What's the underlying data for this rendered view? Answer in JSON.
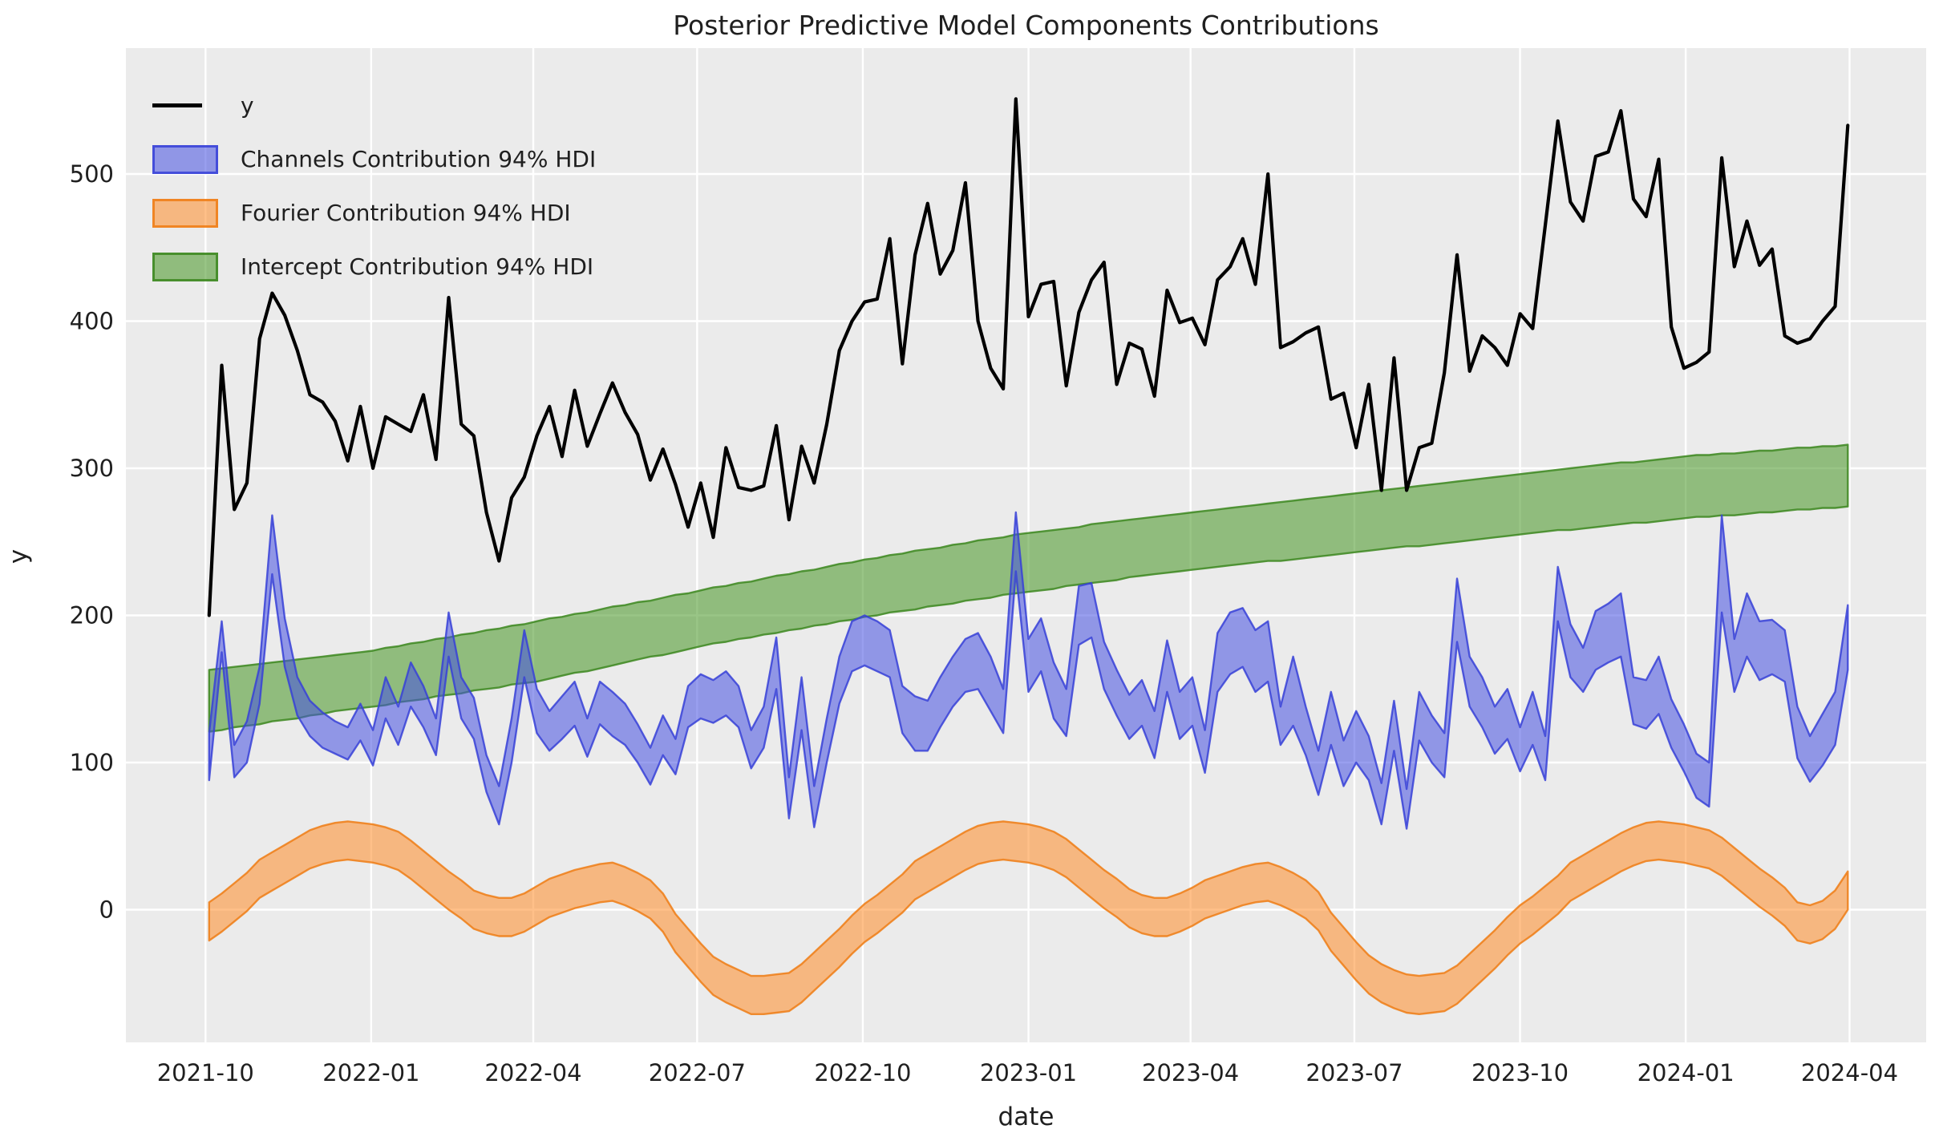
{
  "figure": {
    "title": "Posterior Predictive Model Components Contributions",
    "xlabel": "date",
    "ylabel": "y",
    "background_color": "#ffffff",
    "plot_background_color": "#ebebeb",
    "grid_color": "#ffffff",
    "text_color": "#1f1f1f",
    "line_color": "#000000"
  },
  "legend": {
    "items": [
      {
        "label": "y",
        "type": "line",
        "fill": "#000000",
        "edge": "#000000"
      },
      {
        "label": "Channels Contribution 94% HDI",
        "type": "patch",
        "fill": "rgba(70,80,225,0.55)",
        "edge": "rgba(55,65,215,0.85)"
      },
      {
        "label": "Fourier Contribution 94% HDI",
        "type": "patch",
        "fill": "rgba(255,140,40,0.55)",
        "edge": "rgba(238,125,20,0.85)"
      },
      {
        "label": "Intercept Contribution 94% HDI",
        "type": "patch",
        "fill": "rgba(70,150,35,0.55)",
        "edge": "rgba(60,135,30,0.85)"
      }
    ]
  },
  "chart_data": {
    "type": "line",
    "title": "Posterior Predictive Model Components Contributions",
    "xlabel": "date",
    "ylabel": "y",
    "grid": true,
    "legend_position": "upper left",
    "ylim": [
      -90,
      585
    ],
    "y_ticks": [
      0,
      100,
      200,
      300,
      400,
      500
    ],
    "x_tick_labels": [
      "2021-10",
      "2022-01",
      "2022-04",
      "2022-07",
      "2022-10",
      "2023-01",
      "2023-04",
      "2023-07",
      "2023-10",
      "2024-01",
      "2024-04"
    ],
    "x_tick_dates": [
      "2021-10-01",
      "2022-01-01",
      "2022-04-01",
      "2022-07-01",
      "2022-10-01",
      "2023-01-01",
      "2023-04-01",
      "2023-07-01",
      "2023-10-01",
      "2024-01-01",
      "2024-04-01"
    ],
    "hdi_probability": "94%",
    "dates": [
      "2021-10-03",
      "2021-10-10",
      "2021-10-17",
      "2021-10-24",
      "2021-10-31",
      "2021-11-07",
      "2021-11-14",
      "2021-11-21",
      "2021-11-28",
      "2021-12-05",
      "2021-12-12",
      "2021-12-19",
      "2021-12-26",
      "2022-01-02",
      "2022-01-09",
      "2022-01-16",
      "2022-01-23",
      "2022-01-30",
      "2022-02-06",
      "2022-02-13",
      "2022-02-20",
      "2022-02-27",
      "2022-03-06",
      "2022-03-13",
      "2022-03-20",
      "2022-03-27",
      "2022-04-03",
      "2022-04-10",
      "2022-04-17",
      "2022-04-24",
      "2022-05-01",
      "2022-05-08",
      "2022-05-15",
      "2022-05-22",
      "2022-05-29",
      "2022-06-05",
      "2022-06-12",
      "2022-06-19",
      "2022-06-26",
      "2022-07-03",
      "2022-07-10",
      "2022-07-17",
      "2022-07-24",
      "2022-07-31",
      "2022-08-07",
      "2022-08-14",
      "2022-08-21",
      "2022-08-28",
      "2022-09-04",
      "2022-09-11",
      "2022-09-18",
      "2022-09-25",
      "2022-10-02",
      "2022-10-09",
      "2022-10-16",
      "2022-10-23",
      "2022-10-30",
      "2022-11-06",
      "2022-11-13",
      "2022-11-20",
      "2022-11-27",
      "2022-12-04",
      "2022-12-11",
      "2022-12-18",
      "2022-12-25",
      "2023-01-01",
      "2023-01-08",
      "2023-01-15",
      "2023-01-22",
      "2023-01-29",
      "2023-02-05",
      "2023-02-12",
      "2023-02-19",
      "2023-02-26",
      "2023-03-05",
      "2023-03-12",
      "2023-03-19",
      "2023-03-26",
      "2023-04-02",
      "2023-04-09",
      "2023-04-16",
      "2023-04-23",
      "2023-04-30",
      "2023-05-07",
      "2023-05-14",
      "2023-05-21",
      "2023-05-28",
      "2023-06-04",
      "2023-06-11",
      "2023-06-18",
      "2023-06-25",
      "2023-07-02",
      "2023-07-09",
      "2023-07-16",
      "2023-07-23",
      "2023-07-30",
      "2023-08-06",
      "2023-08-13",
      "2023-08-20",
      "2023-08-27",
      "2023-09-03",
      "2023-09-10",
      "2023-09-17",
      "2023-09-24",
      "2023-10-01",
      "2023-10-08",
      "2023-10-15",
      "2023-10-22",
      "2023-10-29",
      "2023-11-05",
      "2023-11-12",
      "2023-11-19",
      "2023-11-26",
      "2023-12-03",
      "2023-12-10",
      "2023-12-17",
      "2023-12-24",
      "2023-12-31",
      "2024-01-07",
      "2024-01-14",
      "2024-01-21",
      "2024-01-28",
      "2024-02-04",
      "2024-02-11",
      "2024-02-18",
      "2024-02-25",
      "2024-03-03",
      "2024-03-10",
      "2024-03-17",
      "2024-03-24",
      "2024-03-31"
    ],
    "series": {
      "y": [
        200,
        370,
        272,
        290,
        388,
        419,
        404,
        380,
        350,
        345,
        332,
        305,
        342,
        300,
        335,
        330,
        325,
        350,
        306,
        416,
        330,
        322,
        270,
        237,
        280,
        294,
        322,
        342,
        308,
        353,
        315,
        337,
        358,
        338,
        323,
        292,
        313,
        289,
        260,
        290,
        253,
        314,
        287,
        285,
        288,
        329,
        265,
        315,
        290,
        330,
        380,
        400,
        413,
        415,
        456,
        371,
        445,
        480,
        432,
        448,
        494,
        400,
        368,
        354,
        551,
        403,
        425,
        427,
        356,
        406,
        428,
        440,
        357,
        385,
        381,
        349,
        421,
        399,
        402,
        384,
        428,
        437,
        456,
        425,
        500,
        382,
        386,
        392,
        396,
        347,
        351,
        314,
        357,
        285,
        375,
        285,
        314,
        317,
        365,
        445,
        366,
        390,
        382,
        370,
        405,
        395,
        465,
        536,
        481,
        468,
        512,
        515,
        543,
        483,
        471,
        510,
        396,
        368,
        372,
        379,
        511,
        437,
        468,
        438,
        449,
        390,
        385,
        388,
        400,
        410,
        533
      ],
      "channels_hdi_lower": [
        88,
        175,
        90,
        100,
        140,
        228,
        165,
        132,
        118,
        110,
        106,
        102,
        115,
        98,
        130,
        112,
        138,
        124,
        105,
        172,
        130,
        116,
        80,
        58,
        100,
        158,
        120,
        108,
        116,
        125,
        104,
        126,
        118,
        112,
        100,
        85,
        105,
        92,
        124,
        130,
        127,
        132,
        124,
        96,
        110,
        150,
        62,
        122,
        56,
        100,
        140,
        162,
        166,
        162,
        158,
        120,
        108,
        108,
        124,
        138,
        148,
        150,
        135,
        120,
        230,
        148,
        162,
        130,
        118,
        180,
        185,
        150,
        132,
        116,
        125,
        103,
        148,
        116,
        125,
        93,
        148,
        160,
        165,
        148,
        155,
        112,
        125,
        105,
        78,
        112,
        84,
        100,
        88,
        58,
        108,
        55,
        115,
        100,
        90,
        182,
        138,
        124,
        106,
        116,
        94,
        112,
        88,
        196,
        158,
        148,
        163,
        168,
        172,
        126,
        123,
        133,
        110,
        94,
        76,
        70,
        202,
        148,
        172,
        156,
        160,
        155,
        103,
        87,
        98,
        112,
        163
      ],
      "channels_hdi_upper": [
        120,
        196,
        112,
        128,
        165,
        268,
        198,
        158,
        142,
        134,
        128,
        124,
        140,
        122,
        158,
        138,
        168,
        152,
        130,
        202,
        158,
        144,
        105,
        84,
        130,
        190,
        150,
        135,
        145,
        155,
        130,
        155,
        148,
        140,
        126,
        110,
        132,
        116,
        152,
        160,
        156,
        162,
        152,
        122,
        138,
        185,
        90,
        158,
        84,
        130,
        172,
        196,
        200,
        196,
        190,
        152,
        145,
        142,
        158,
        172,
        184,
        188,
        172,
        150,
        270,
        184,
        198,
        168,
        150,
        220,
        222,
        182,
        163,
        146,
        156,
        135,
        183,
        148,
        158,
        122,
        188,
        202,
        205,
        190,
        196,
        138,
        172,
        138,
        108,
        148,
        115,
        135,
        118,
        86,
        142,
        82,
        148,
        132,
        120,
        225,
        172,
        158,
        138,
        150,
        124,
        148,
        118,
        233,
        194,
        178,
        203,
        208,
        215,
        158,
        156,
        172,
        143,
        126,
        106,
        100,
        268,
        184,
        215,
        196,
        197,
        190,
        138,
        118,
        133,
        148,
        207
      ],
      "fourier_hdi_lower": [
        -21,
        -15,
        -8,
        -1,
        8,
        13,
        18,
        23,
        28,
        31,
        33,
        34,
        33,
        32,
        30,
        27,
        21,
        14,
        7,
        0,
        -6,
        -13,
        -16,
        -18,
        -18,
        -15,
        -10,
        -5,
        -2,
        1,
        3,
        5,
        6,
        3,
        -1,
        -6,
        -15,
        -29,
        -39,
        -49,
        -58,
        -63,
        -67,
        -71,
        -71,
        -70,
        -69,
        -63,
        -55,
        -47,
        -39,
        -30,
        -22,
        -16,
        -9,
        -2,
        7,
        12,
        17,
        22,
        27,
        31,
        33,
        34,
        33,
        32,
        30,
        27,
        22,
        15,
        8,
        1,
        -5,
        -12,
        -16,
        -18,
        -18,
        -15,
        -11,
        -6,
        -3,
        0,
        3,
        5,
        6,
        3,
        -1,
        -6,
        -14,
        -28,
        -38,
        -48,
        -57,
        -63,
        -67,
        -70,
        -71,
        -70,
        -69,
        -64,
        -56,
        -48,
        -40,
        -31,
        -23,
        -17,
        -10,
        -3,
        6,
        11,
        16,
        21,
        26,
        30,
        33,
        34,
        33,
        32,
        30,
        28,
        23,
        16,
        9,
        2,
        -4,
        -11,
        -21,
        -23,
        -20,
        -13,
        0
      ],
      "fourier_hdi_upper": [
        5,
        11,
        18,
        25,
        34,
        39,
        44,
        49,
        54,
        57,
        59,
        60,
        59,
        58,
        56,
        53,
        47,
        40,
        33,
        26,
        20,
        13,
        10,
        8,
        8,
        11,
        16,
        21,
        24,
        27,
        29,
        31,
        32,
        29,
        25,
        20,
        11,
        -3,
        -13,
        -23,
        -32,
        -37,
        -41,
        -45,
        -45,
        -44,
        -43,
        -37,
        -29,
        -21,
        -13,
        -4,
        4,
        10,
        17,
        24,
        33,
        38,
        43,
        48,
        53,
        57,
        59,
        60,
        59,
        58,
        56,
        53,
        48,
        41,
        34,
        27,
        21,
        14,
        10,
        8,
        8,
        11,
        15,
        20,
        23,
        26,
        29,
        31,
        32,
        29,
        25,
        20,
        12,
        -2,
        -12,
        -22,
        -31,
        -37,
        -41,
        -44,
        -45,
        -44,
        -43,
        -38,
        -30,
        -22,
        -14,
        -5,
        3,
        9,
        16,
        23,
        32,
        37,
        42,
        47,
        52,
        56,
        59,
        60,
        59,
        58,
        56,
        54,
        49,
        42,
        35,
        28,
        22,
        15,
        5,
        3,
        6,
        13,
        26
      ],
      "intercept_hdi_lower": [
        121,
        122,
        124,
        125,
        126,
        128,
        129,
        130,
        132,
        133,
        135,
        136,
        137,
        138,
        139,
        141,
        142,
        143,
        145,
        146,
        147,
        149,
        150,
        151,
        153,
        154,
        155,
        157,
        159,
        161,
        162,
        164,
        166,
        168,
        170,
        172,
        173,
        175,
        177,
        179,
        181,
        182,
        184,
        185,
        187,
        188,
        190,
        191,
        193,
        194,
        196,
        197,
        199,
        200,
        202,
        203,
        204,
        206,
        207,
        208,
        210,
        211,
        212,
        214,
        215,
        216,
        217,
        218,
        220,
        221,
        222,
        223,
        224,
        226,
        227,
        228,
        229,
        230,
        231,
        232,
        233,
        234,
        235,
        236,
        237,
        237,
        238,
        239,
        240,
        241,
        242,
        243,
        244,
        245,
        246,
        247,
        247,
        248,
        249,
        250,
        251,
        252,
        253,
        254,
        255,
        256,
        257,
        258,
        258,
        259,
        260,
        261,
        262,
        263,
        263,
        264,
        265,
        266,
        267,
        267,
        268,
        268,
        269,
        270,
        270,
        271,
        272,
        272,
        273,
        273,
        274
      ],
      "intercept_hdi_upper": [
        163,
        164,
        165,
        166,
        167,
        168,
        169,
        170,
        171,
        172,
        173,
        174,
        175,
        176,
        178,
        179,
        181,
        182,
        184,
        185,
        187,
        188,
        190,
        191,
        193,
        194,
        196,
        198,
        199,
        201,
        202,
        204,
        206,
        207,
        209,
        210,
        212,
        214,
        215,
        217,
        219,
        220,
        222,
        223,
        225,
        227,
        228,
        230,
        231,
        233,
        235,
        236,
        238,
        239,
        241,
        242,
        244,
        245,
        246,
        248,
        249,
        251,
        252,
        253,
        255,
        256,
        257,
        258,
        259,
        260,
        262,
        263,
        264,
        265,
        266,
        267,
        268,
        269,
        270,
        271,
        272,
        273,
        274,
        275,
        276,
        277,
        278,
        279,
        280,
        281,
        282,
        283,
        284,
        285,
        286,
        287,
        288,
        289,
        290,
        291,
        292,
        293,
        294,
        295,
        296,
        297,
        298,
        299,
        300,
        301,
        302,
        303,
        304,
        304,
        305,
        306,
        307,
        308,
        309,
        309,
        310,
        310,
        311,
        312,
        312,
        313,
        314,
        314,
        315,
        315,
        316
      ]
    }
  }
}
